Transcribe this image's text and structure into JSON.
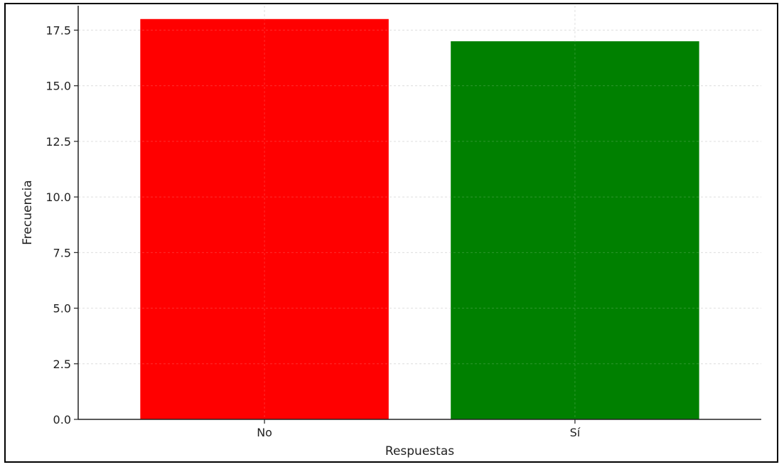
{
  "chart_data": {
    "type": "bar",
    "title": "",
    "xlabel": "Respuestas",
    "ylabel": "Frecuencia",
    "categories": [
      "No",
      "Sí"
    ],
    "values": [
      18,
      17
    ],
    "colors": [
      "#ff0000",
      "#008000"
    ],
    "ylim": [
      0,
      18.6
    ],
    "yticks": [
      0.0,
      2.5,
      5.0,
      7.5,
      10.0,
      12.5,
      15.0,
      17.5
    ],
    "ytick_labels": [
      "0.0",
      "2.5",
      "5.0",
      "7.5",
      "10.0",
      "12.5",
      "15.0",
      "17.5"
    ],
    "grid": true,
    "legend": "none"
  }
}
